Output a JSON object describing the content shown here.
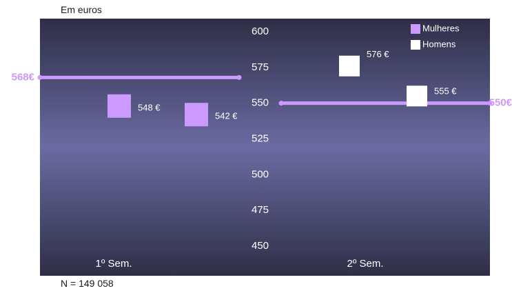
{
  "unit_note": "Em euros",
  "sample_note": "N = 149 058",
  "colors": {
    "mulheres": "#cc99ff",
    "homens": "#ffffff",
    "average_line": "#cc99ff",
    "panel_dark": "#2e2e47",
    "panel_light": "#6b6ba3",
    "label_text": "#ffffff"
  },
  "chart_data": {
    "type": "scatter",
    "categories": [
      "1º Sem.",
      "2º Sem."
    ],
    "y_ticks": [
      "600",
      "575",
      "550",
      "525",
      "500",
      "475",
      "450"
    ],
    "ylim": [
      450,
      600
    ],
    "legend_position": "top-right",
    "series": [
      {
        "name": "Mulheres",
        "values": [
          548,
          542
        ],
        "labels": [
          "548 €",
          "542 €"
        ]
      },
      {
        "name": "Homens",
        "values": [
          576,
          555
        ],
        "labels": [
          "576 €",
          "555 €"
        ]
      }
    ],
    "averages": [
      {
        "value": 568,
        "label": "568€"
      },
      {
        "value": 550,
        "label": "550€"
      }
    ]
  }
}
